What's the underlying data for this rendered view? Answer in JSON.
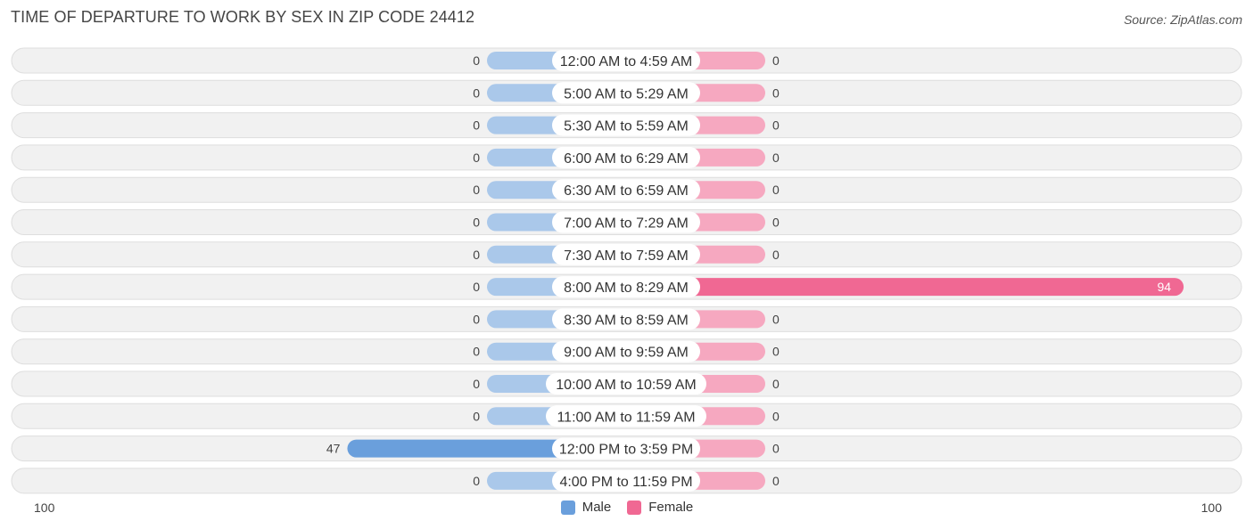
{
  "title": "TIME OF DEPARTURE TO WORK BY SEX IN ZIP CODE 24412",
  "source": "Source: ZipAtlas.com",
  "colors": {
    "male_stub": "#aac8ea",
    "male_full": "#6a9fdc",
    "female_stub": "#f6a8c0",
    "female_full": "#f06893",
    "row_bg": "#f1f1f1",
    "row_border": "#dedede"
  },
  "axis": {
    "left_label": "100",
    "right_label": "100",
    "max": 100
  },
  "legend": {
    "male": "Male",
    "female": "Female"
  },
  "chart_data": {
    "type": "bar",
    "orientation": "horizontal-diverging",
    "title": "TIME OF DEPARTURE TO WORK BY SEX IN ZIP CODE 24412",
    "xlim": [
      -100,
      100
    ],
    "categories": [
      "12:00 AM to 4:59 AM",
      "5:00 AM to 5:29 AM",
      "5:30 AM to 5:59 AM",
      "6:00 AM to 6:29 AM",
      "6:30 AM to 6:59 AM",
      "7:00 AM to 7:29 AM",
      "7:30 AM to 7:59 AM",
      "8:00 AM to 8:29 AM",
      "8:30 AM to 8:59 AM",
      "9:00 AM to 9:59 AM",
      "10:00 AM to 10:59 AM",
      "11:00 AM to 11:59 AM",
      "12:00 PM to 3:59 PM",
      "4:00 PM to 11:59 PM"
    ],
    "series": [
      {
        "name": "Male",
        "values": [
          0,
          0,
          0,
          0,
          0,
          0,
          0,
          0,
          0,
          0,
          0,
          0,
          47,
          0
        ]
      },
      {
        "name": "Female",
        "values": [
          0,
          0,
          0,
          0,
          0,
          0,
          0,
          94,
          0,
          0,
          0,
          0,
          0,
          0
        ]
      }
    ],
    "legend_position": "bottom-center"
  }
}
